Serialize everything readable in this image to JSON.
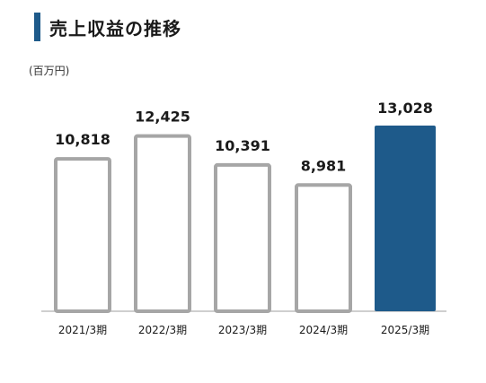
{
  "title": "売上収益の推移",
  "unit": "(百万円)",
  "colors": {
    "accent": "#1e5a8a",
    "bar_outline": "#a6a6a6",
    "baseline": "#bfbfbf"
  },
  "chart_data": {
    "type": "bar",
    "title": "売上収益の推移",
    "unit": "(百万円)",
    "categories": [
      "2021/3期",
      "2022/3期",
      "2023/3期",
      "2024/3期",
      "2025/3期"
    ],
    "values": [
      10818,
      12425,
      10391,
      8981,
      13028
    ],
    "value_labels": [
      "10,818",
      "12,425",
      "10,391",
      "8,981",
      "13,028"
    ],
    "highlight": [
      false,
      false,
      false,
      false,
      true
    ],
    "ylim": [
      0,
      13028
    ],
    "grid": false,
    "legend": "none"
  }
}
